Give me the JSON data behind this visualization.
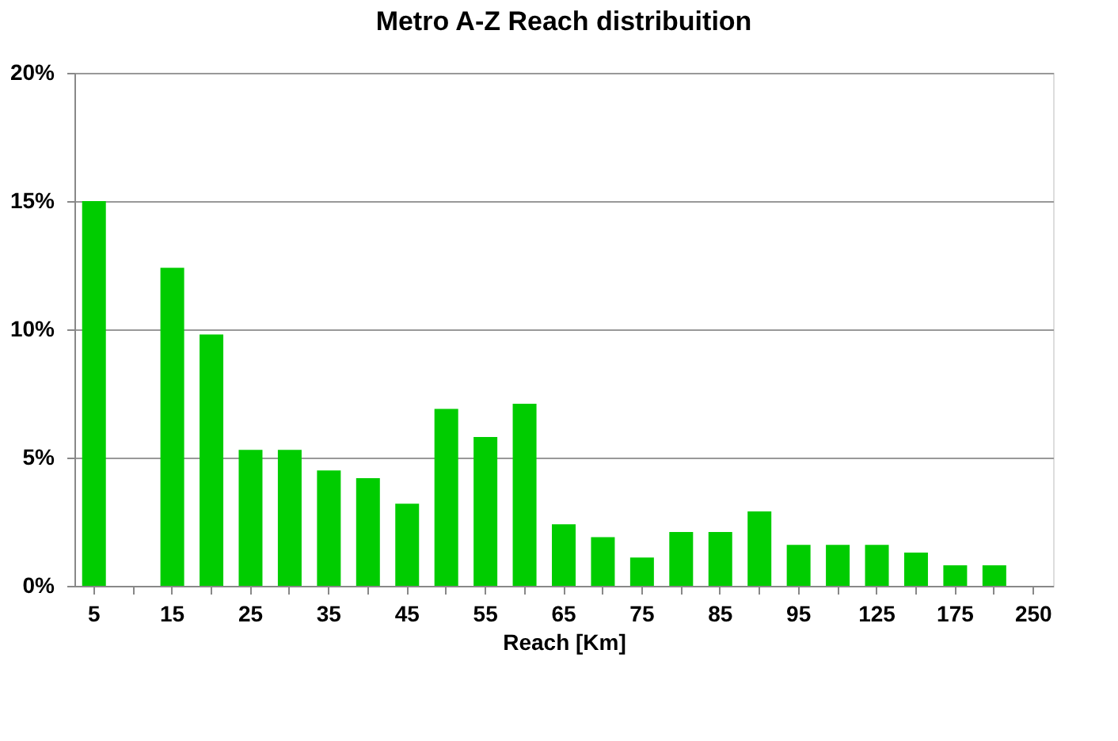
{
  "chart_data": {
    "type": "bar",
    "title": "Metro A-Z Reach distribuition",
    "xlabel": "Reach [Km]",
    "categories": [
      "5",
      null,
      "15",
      null,
      "25",
      null,
      "35",
      null,
      "45",
      null,
      "55",
      null,
      "65",
      null,
      "75",
      null,
      "85",
      null,
      "95",
      null,
      "125",
      null,
      "175",
      null,
      "250"
    ],
    "values": [
      15.0,
      0,
      12.4,
      9.8,
      5.3,
      5.3,
      4.5,
      4.2,
      3.2,
      6.9,
      5.8,
      7.1,
      2.4,
      1.9,
      1.1,
      2.1,
      2.1,
      2.9,
      1.6,
      1.6,
      1.6,
      1.3,
      0.8,
      0.8,
      0
    ],
    "color": "#00cc00",
    "ylim": [
      0,
      20
    ],
    "yticks": [
      {
        "value": 0,
        "label": "0%"
      },
      {
        "value": 5,
        "label": "5%"
      },
      {
        "value": 10,
        "label": "10%"
      },
      {
        "value": 15,
        "label": "15%"
      },
      {
        "value": 20,
        "label": "20%"
      }
    ],
    "grid": "y"
  }
}
